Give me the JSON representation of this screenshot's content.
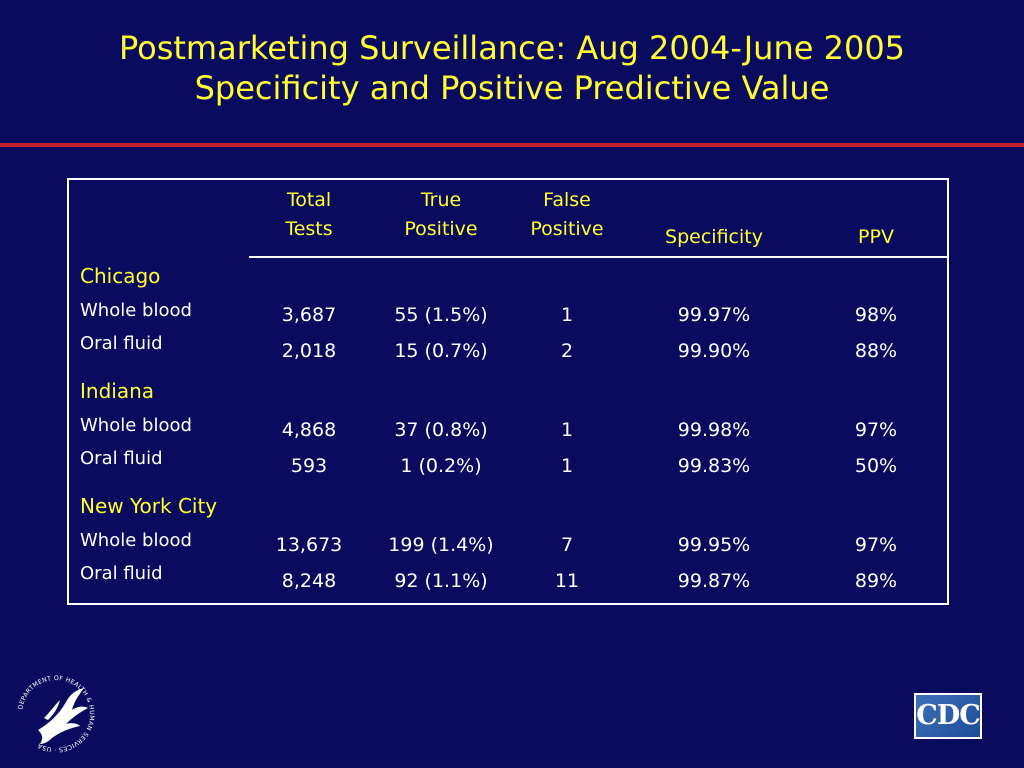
{
  "slide": {
    "title_line1": "Postmarketing Surveillance:  Aug 2004-June 2005",
    "title_line2": "Specificity and Positive Predictive Value"
  },
  "table": {
    "headers": {
      "total_tests": [
        "Total",
        "Tests"
      ],
      "true_positive": [
        "True",
        "Positive"
      ],
      "false_positive": [
        "False",
        "Positive"
      ],
      "specificity": "Specificity",
      "ppv": "PPV"
    },
    "groups": [
      {
        "city": "Chicago",
        "rows": [
          {
            "label": "Whole blood",
            "total": "3,687",
            "true_pos": "55 (1.5%)",
            "false_pos": "1",
            "specificity": "99.97%",
            "ppv": "98%"
          },
          {
            "label": "Oral fluid",
            "total": "2,018",
            "true_pos": "15 (0.7%)",
            "false_pos": "2",
            "specificity": "99.90%",
            "ppv": "88%"
          }
        ]
      },
      {
        "city": "Indiana",
        "rows": [
          {
            "label": "Whole blood",
            "total": "4,868",
            "true_pos": "37 (0.8%)",
            "false_pos": "1",
            "specificity": "99.98%",
            "ppv": "97%"
          },
          {
            "label": "Oral fluid",
            "total": "593",
            "true_pos": "1 (0.2%)",
            "false_pos": "1",
            "specificity": "99.83%",
            "ppv": "50%"
          }
        ]
      },
      {
        "city": "New York City",
        "rows": [
          {
            "label": "Whole blood",
            "total": "13,673",
            "true_pos": "199 (1.4%)",
            "false_pos": "7",
            "specificity": "99.95%",
            "ppv": "97%"
          },
          {
            "label": "Oral fluid",
            "total": "8,248",
            "true_pos": "92 (1.1%)",
            "false_pos": "11",
            "specificity": "99.87%",
            "ppv": "89%"
          }
        ]
      }
    ]
  },
  "logos": {
    "hhs": {
      "icon": "hhs-seal-icon",
      "text": "DEPARTMENT OF HEALTH & HUMAN SERVICES · USA"
    },
    "cdc": {
      "icon": "cdc-logo-icon",
      "text": "CDC"
    }
  },
  "colors": {
    "background": "#0a0a5e",
    "title": "#ffff33",
    "rule": "#c2202a",
    "text": "#ffffff"
  }
}
